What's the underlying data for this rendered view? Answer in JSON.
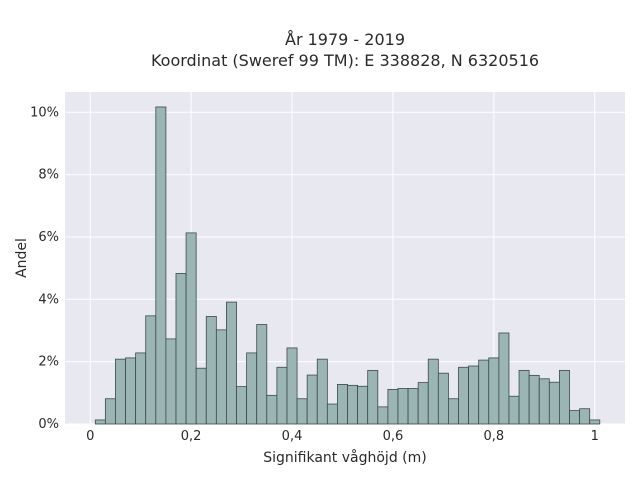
{
  "chart_data": {
    "type": "bar",
    "title_line1": "År 1979 - 2019",
    "title_line2": "Koordinat (Sweref 99 TM): E 338828, N 6320516",
    "xlabel": "Signifikant våghöjd (m)",
    "ylabel": "Andel",
    "xlim": [
      -0.05,
      1.06
    ],
    "ylim": [
      0,
      10.65
    ],
    "x_ticks": [
      {
        "value": 0,
        "label": "0"
      },
      {
        "value": 0.2,
        "label": "0,2"
      },
      {
        "value": 0.4,
        "label": "0,4"
      },
      {
        "value": 0.6,
        "label": "0,6"
      },
      {
        "value": 0.8,
        "label": "0,8"
      },
      {
        "value": 1,
        "label": "1"
      }
    ],
    "y_ticks": [
      {
        "value": 0,
        "label": "0%"
      },
      {
        "value": 2,
        "label": "2%"
      },
      {
        "value": 4,
        "label": "4%"
      },
      {
        "value": 6,
        "label": "6%"
      },
      {
        "value": 8,
        "label": "8%"
      },
      {
        "value": 10,
        "label": "10%"
      }
    ],
    "bin_width": 0.02,
    "bin_starts": [
      0.01,
      0.03,
      0.05,
      0.07,
      0.09,
      0.11,
      0.13,
      0.15,
      0.17,
      0.19,
      0.21,
      0.23,
      0.25,
      0.27,
      0.29,
      0.31,
      0.33,
      0.35,
      0.37,
      0.39,
      0.41,
      0.43,
      0.45,
      0.47,
      0.49,
      0.51,
      0.53,
      0.55,
      0.57,
      0.59,
      0.61,
      0.63,
      0.65,
      0.67,
      0.69,
      0.71,
      0.73,
      0.75,
      0.77,
      0.79,
      0.81,
      0.83,
      0.85,
      0.87,
      0.89,
      0.91,
      0.93,
      0.95,
      0.97,
      0.99
    ],
    "values": [
      0.13,
      0.81,
      2.08,
      2.12,
      2.28,
      3.47,
      10.17,
      2.73,
      4.83,
      6.13,
      1.79,
      3.45,
      3.02,
      3.91,
      1.2,
      2.28,
      3.19,
      0.92,
      1.82,
      2.44,
      0.81,
      1.57,
      2.08,
      0.64,
      1.27,
      1.24,
      1.21,
      1.72,
      0.55,
      1.11,
      1.14,
      1.14,
      1.33,
      2.08,
      1.63,
      0.81,
      1.82,
      1.86,
      2.05,
      2.12,
      2.92,
      0.89,
      1.72,
      1.56,
      1.45,
      1.34,
      1.72,
      0.43,
      0.49,
      0.13
    ],
    "colors": {
      "plot_bg": "#e8e8f1",
      "grid": "#ffffff",
      "bar_fill": "#9bb5b5",
      "bar_stroke": "#3a4a4a"
    },
    "grid": true
  }
}
